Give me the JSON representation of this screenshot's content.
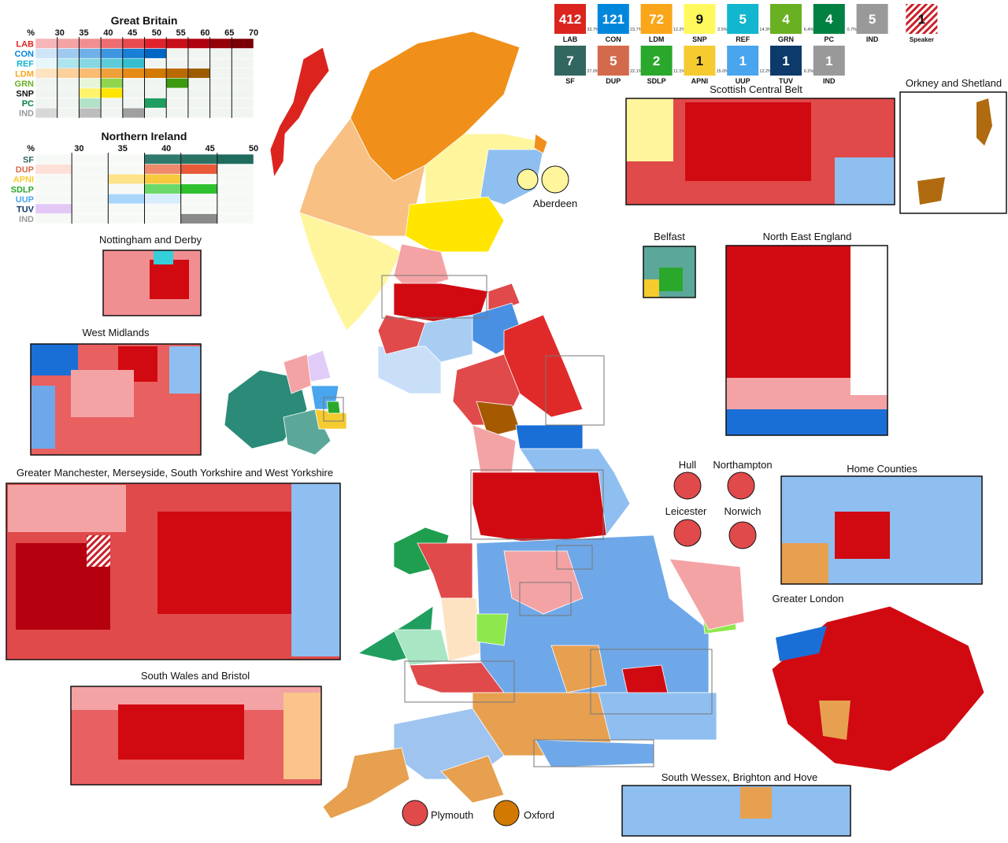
{
  "party_boxes": {
    "row1": [
      {
        "name": "LAB",
        "seats": "412",
        "share": "33.7%",
        "color": "#dc241f"
      },
      {
        "name": "CON",
        "seats": "121",
        "share": "23.7%",
        "color": "#0087dc"
      },
      {
        "name": "LDM",
        "seats": "72",
        "share": "12.2%",
        "color": "#faa61a"
      },
      {
        "name": "SNP",
        "seats": "9",
        "share": "2.5%",
        "color": "#fff95d"
      },
      {
        "name": "REF",
        "seats": "5",
        "share": "14.3%",
        "color": "#12b6cf"
      },
      {
        "name": "GRN",
        "seats": "4",
        "share": "6.4%",
        "color": "#6ab023"
      },
      {
        "name": "PC",
        "seats": "4",
        "share": "0.7%",
        "color": "#008142"
      },
      {
        "name": "IND",
        "seats": "5",
        "color": "#999999"
      },
      {
        "name": "Speaker",
        "seats": "1",
        "color": "hatch"
      }
    ],
    "row2": [
      {
        "name": "SF",
        "seats": "7",
        "share": "27.0%",
        "color": "#326760"
      },
      {
        "name": "DUP",
        "seats": "5",
        "share": "22.1%",
        "color": "#d46a4c"
      },
      {
        "name": "SDLP",
        "seats": "2",
        "share": "11.1%",
        "color": "#2aa82c"
      },
      {
        "name": "APNI",
        "seats": "1",
        "share": "15.0%",
        "color": "#f6cb2f"
      },
      {
        "name": "UUP",
        "seats": "1",
        "share": "12.2%",
        "color": "#48a5ee"
      },
      {
        "name": "TUV",
        "seats": "1",
        "share": "6.2%",
        "color": "#0c3a6a"
      },
      {
        "name": "IND",
        "seats": "1",
        "color": "#999999"
      }
    ]
  },
  "gb_table": {
    "title": "Great Britain",
    "header": [
      "%",
      "30",
      "35",
      "40",
      "45",
      "50",
      "55",
      "60",
      "65",
      "70"
    ],
    "rows": [
      {
        "party": "LAB",
        "color": "#dc241f",
        "shades": [
          "#f6b6b8",
          "#f4a3a5",
          "#f08f92",
          "#ec6e72",
          "#e84a50",
          "#e0232b",
          "#c8101a",
          "#b00010",
          "#960008",
          "#7a0005"
        ]
      },
      {
        "party": "CON",
        "color": "#0087dc",
        "shades": [
          "#cfe4f7",
          "#9fcaf0",
          "#6fb0e8",
          "#3f96e0",
          "#1a7fd6",
          "#0066c4",
          "#f1f5f1",
          "#f1f5f1",
          "#f1f5f1",
          "#f1f5f1"
        ]
      },
      {
        "party": "REF",
        "color": "#12b6cf",
        "shades": [
          "#e6f7f9",
          "#aee4ec",
          "#86d7e2",
          "#5ecbd9",
          "#35bece",
          "#f1f5f1",
          "#f1f5f1",
          "#f1f5f1",
          "#f1f5f1",
          "#f1f5f1"
        ]
      },
      {
        "party": "LDM",
        "color": "#faa61a",
        "shades": [
          "#fde3c2",
          "#fbd09a",
          "#f9bc72",
          "#f0a038",
          "#e68a17",
          "#d17900",
          "#b86a00",
          "#9e5c00",
          "#f1f5f1",
          "#f1f5f1"
        ]
      },
      {
        "party": "GRN",
        "color": "#6ab023",
        "shades": [
          "#f1f5f1",
          "#f1f5f1",
          "#e7f5d9",
          "#8fd64e",
          "#f1f5f1",
          "#f1f5f1",
          "#3c9a10",
          "#f1f5f1",
          "#f1f5f1",
          "#f1f5f1"
        ]
      },
      {
        "party": "SNP",
        "color": "#111111",
        "shades": [
          "#f1f5f1",
          "#f1f5f1",
          "#fff36b",
          "#ffe500",
          "#f1f5f1",
          "#f1f5f1",
          "#f1f5f1",
          "#f1f5f1",
          "#f1f5f1",
          "#f1f5f1"
        ]
      },
      {
        "party": "PC",
        "color": "#008142",
        "shades": [
          "#f1f5f1",
          "#f1f5f1",
          "#b2e3c8",
          "#f1f5f1",
          "#f1f5f1",
          "#1f9e60",
          "#f1f5f1",
          "#f1f5f1",
          "#f1f5f1",
          "#f1f5f1"
        ]
      },
      {
        "party": "IND",
        "color": "#999999",
        "shades": [
          "#d8d8d8",
          "#f1f5f1",
          "#bdbdbd",
          "#f1f5f1",
          "#a0a0a0",
          "#f1f5f1",
          "#f1f5f1",
          "#f1f5f1",
          "#f1f5f1",
          "#f1f5f1"
        ]
      }
    ]
  },
  "ni_table": {
    "title": "Northern Ireland",
    "header": [
      "%",
      "30",
      "35",
      "40",
      "45",
      "50"
    ],
    "rows": [
      {
        "party": "SF",
        "color": "#326760",
        "shades": [
          "#f7f9f7",
          "#f7f9f7",
          "#f7f9f7",
          "#2f7a6c",
          "#2a7364",
          "#1f6b5d"
        ]
      },
      {
        "party": "DUP",
        "color": "#d46a4c",
        "shades": [
          "#fde0d8",
          "#f7f9f7",
          "#f7f9f7",
          "#ef8a6c",
          "#e85a38",
          "#f7f9f7"
        ]
      },
      {
        "party": "APNI",
        "color": "#f6cb2f",
        "shades": [
          "#f7f9f7",
          "#f7f9f7",
          "#fde38a",
          "#f7c93c",
          "#f7f9f7",
          "#f7f9f7"
        ]
      },
      {
        "party": "SDLP",
        "color": "#2aa82c",
        "shades": [
          "#f7f9f7",
          "#f7f9f7",
          "#f7f9f7",
          "#6bd86a",
          "#2fc02e",
          "#f7f9f7"
        ]
      },
      {
        "party": "UUP",
        "color": "#48a5ee",
        "shades": [
          "#f7f9f7",
          "#f7f9f7",
          "#a8d6fb",
          "#d7ecfc",
          "#f7f9f7",
          "#f7f9f7"
        ]
      },
      {
        "party": "TUV",
        "color": "#0c3a6a",
        "shades": [
          "#e3c8f7",
          "#f7f9f7",
          "#f7f9f7",
          "#f7f9f7",
          "#f7f9f7",
          "#f7f9f7"
        ]
      },
      {
        "party": "IND",
        "color": "#999999",
        "shades": [
          "#f7f9f7",
          "#f7f9f7",
          "#f7f9f7",
          "#f7f9f7",
          "#8a8a8a",
          "#f7f9f7"
        ]
      }
    ]
  },
  "insets": {
    "nottingham": "Nottingham and Derby",
    "west_midlands": "West Midlands",
    "manchester": "Greater Manchester, Merseyside, South Yorkshire and West Yorkshire",
    "south_wales": "South Wales and Bristol",
    "central_belt": "Scottish Central Belt",
    "orkney": "Orkney and Shetland",
    "aberdeen": "Aberdeen",
    "belfast": "Belfast",
    "north_east": "North East England",
    "hull": "Hull",
    "northampton": "Northampton",
    "leicester": "Leicester",
    "norwich": "Norwich",
    "home_counties": "Home Counties",
    "london": "Greater London",
    "south_wessex": "South Wessex, Brighton and Hove",
    "plymouth": "Plymouth",
    "oxford": "Oxford"
  }
}
